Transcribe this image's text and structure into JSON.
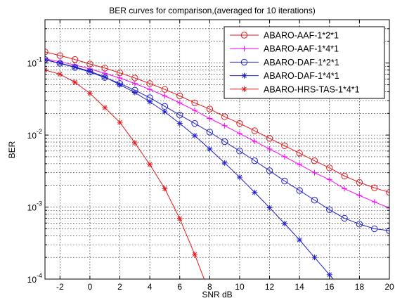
{
  "chart_data": {
    "type": "line",
    "title": "BER curves for comparison,(averaged for 10 iterations)",
    "xlabel": "SNR dB",
    "ylabel": "BER",
    "xlim": [
      -3,
      20
    ],
    "ylim": [
      0.0001,
      0.4
    ],
    "yscale": "log",
    "grid": true,
    "minor_grid": true,
    "legend_position": "top-right",
    "x_ticks": [
      -2,
      0,
      2,
      4,
      6,
      8,
      10,
      12,
      14,
      16,
      18,
      20
    ],
    "x_tick_labels": [
      "-2",
      "0",
      "2",
      "4",
      "6",
      "8",
      "10",
      "12",
      "14",
      "16",
      "18",
      "20"
    ],
    "y_ticks": [
      0.0001,
      0.001,
      0.01,
      0.1
    ],
    "y_tick_labels": [
      {
        "base": "10",
        "exp": "-4"
      },
      {
        "base": "10",
        "exp": "-3"
      },
      {
        "base": "10",
        "exp": "-2"
      },
      {
        "base": "10",
        "exp": "-1"
      }
    ],
    "series": [
      {
        "name": "ABARO-AAF-1*2*1",
        "color": "#e41a1c",
        "marker": "circle",
        "x": [
          -3,
          -2,
          -1,
          0,
          1,
          2,
          3,
          4,
          5,
          6,
          7,
          8,
          9,
          10,
          11,
          12,
          13,
          14,
          15,
          16,
          17,
          18,
          19,
          20
        ],
        "y": [
          0.143,
          0.127,
          0.112,
          0.097,
          0.085,
          0.073,
          0.062,
          0.052,
          0.043,
          0.035,
          0.028,
          0.023,
          0.018,
          0.0145,
          0.0115,
          0.009,
          0.0071,
          0.0056,
          0.0044,
          0.0035,
          0.0027,
          0.0022,
          0.00185,
          0.0016
        ]
      },
      {
        "name": "ABARO-AAF-1*4*1",
        "color": "#ff00ff",
        "marker": "plus",
        "x": [
          -3,
          -2,
          -1,
          0,
          1,
          2,
          3,
          4,
          5,
          6,
          7,
          8,
          9,
          10,
          11,
          12,
          13,
          14,
          15,
          16,
          17,
          18,
          19,
          20
        ],
        "y": [
          0.115,
          0.104,
          0.094,
          0.083,
          0.072,
          0.062,
          0.052,
          0.043,
          0.035,
          0.028,
          0.022,
          0.017,
          0.0135,
          0.0105,
          0.0082,
          0.0064,
          0.005,
          0.0039,
          0.003,
          0.0024,
          0.0018,
          0.00145,
          0.00118,
          0.00097
        ]
      },
      {
        "name": "ABARO-DAF-1*2*1",
        "color": "#1f1fcc",
        "marker": "circle",
        "x": [
          -3,
          -2,
          -1,
          0,
          1,
          2,
          3,
          4,
          5,
          6,
          7,
          8,
          9,
          10,
          11,
          12,
          13,
          14,
          15,
          16,
          17,
          18,
          19,
          20
        ],
        "y": [
          0.112,
          0.099,
          0.087,
          0.075,
          0.063,
          0.052,
          0.042,
          0.033,
          0.025,
          0.019,
          0.0145,
          0.011,
          0.0081,
          0.006,
          0.0044,
          0.0032,
          0.0023,
          0.0017,
          0.00125,
          0.00092,
          0.0007,
          0.00058,
          0.0005,
          0.00047
        ]
      },
      {
        "name": "ABARO-DAF-1*4*1",
        "color": "#1f1fcc",
        "marker": "star",
        "x": [
          -3,
          -2,
          -1,
          0,
          1,
          2,
          3,
          4,
          5,
          6,
          7,
          8,
          9,
          10,
          11,
          12,
          13,
          14,
          15,
          16,
          17
        ],
        "y": [
          0.11,
          0.1,
          0.088,
          0.077,
          0.064,
          0.05,
          0.039,
          0.029,
          0.021,
          0.0145,
          0.0098,
          0.0064,
          0.0041,
          0.0026,
          0.0016,
          0.00098,
          0.00059,
          0.00035,
          0.0002,
          0.000115,
          6.6e-05
        ]
      },
      {
        "name": "ABARO-HRS-TAS-1*4*1",
        "color": "#e41a1c",
        "marker": "star",
        "x": [
          -3,
          -2,
          -1,
          0,
          1,
          2,
          3,
          4,
          5,
          6,
          7,
          8
        ],
        "y": [
          0.08,
          0.07,
          0.054,
          0.038,
          0.024,
          0.015,
          0.0078,
          0.0039,
          0.0018,
          0.00069,
          0.00022,
          6.3e-05
        ]
      }
    ]
  }
}
